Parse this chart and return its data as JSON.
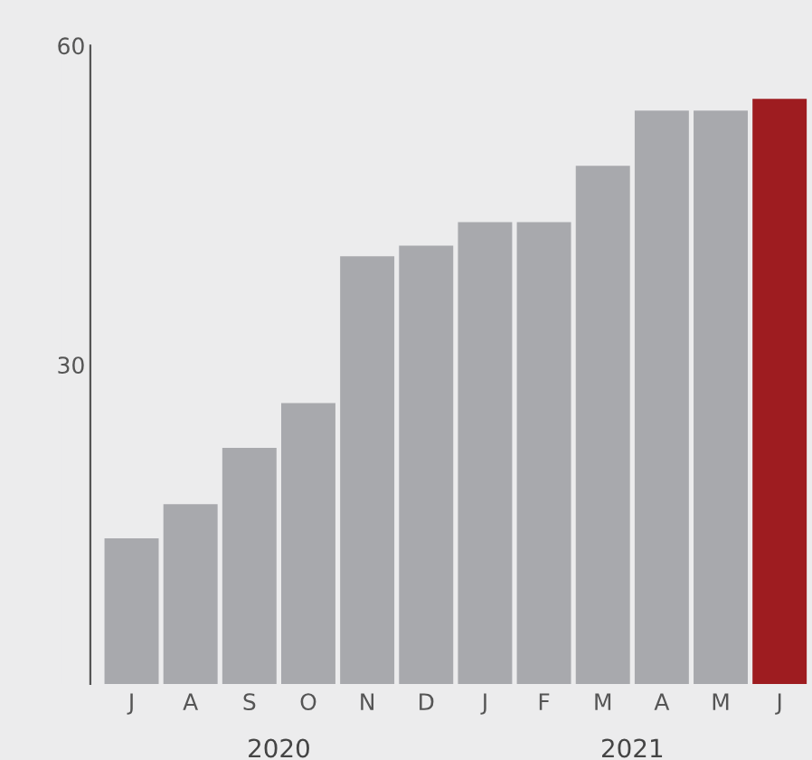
{
  "chart_data": {
    "type": "bar",
    "categories": [
      "J",
      "A",
      "S",
      "O",
      "N",
      "D",
      "J",
      "F",
      "M",
      "A",
      "M",
      "J"
    ],
    "values": [
      13.7,
      16.9,
      22.2,
      26.4,
      40.2,
      41.2,
      43.4,
      43.4,
      48.7,
      53.9,
      53.9,
      55.0
    ],
    "colors": [
      "#a8a9ad",
      "#a8a9ad",
      "#a8a9ad",
      "#a8a9ad",
      "#a8a9ad",
      "#a8a9ad",
      "#a8a9ad",
      "#a8a9ad",
      "#a8a9ad",
      "#a8a9ad",
      "#a8a9ad",
      "#9e1c20"
    ],
    "ylim": [
      0,
      60
    ],
    "yticks": [
      30,
      60
    ],
    "grid": false,
    "annotations": [
      {
        "text": "2020"
      },
      {
        "text": "2021"
      }
    ]
  }
}
